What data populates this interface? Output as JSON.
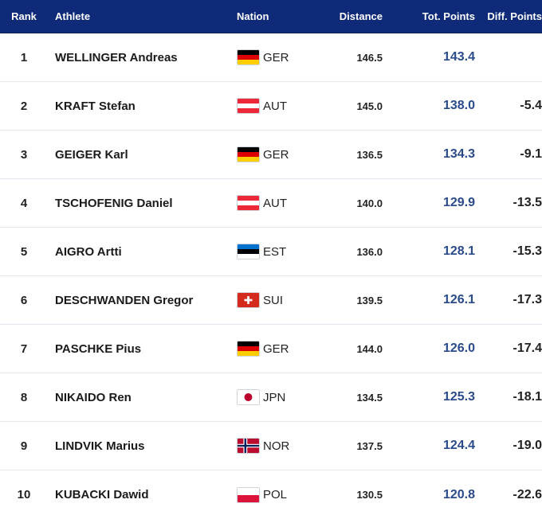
{
  "columns": {
    "rank": "Rank",
    "athlete": "Athlete",
    "nation": "Nation",
    "distance": "Distance",
    "total": "Tot. Points",
    "diff": "Diff. Points"
  },
  "rows": [
    {
      "rank": "1",
      "athlete": "WELLINGER Andreas",
      "nation": "GER",
      "flag_icon": "germany-flag-icon",
      "distance": "146.5",
      "total": "143.4",
      "diff": ""
    },
    {
      "rank": "2",
      "athlete": "KRAFT Stefan",
      "nation": "AUT",
      "flag_icon": "austria-flag-icon",
      "distance": "145.0",
      "total": "138.0",
      "diff": "-5.4"
    },
    {
      "rank": "3",
      "athlete": "GEIGER Karl",
      "nation": "GER",
      "flag_icon": "germany-flag-icon",
      "distance": "136.5",
      "total": "134.3",
      "diff": "-9.1"
    },
    {
      "rank": "4",
      "athlete": "TSCHOFENIG Daniel",
      "nation": "AUT",
      "flag_icon": "austria-flag-icon",
      "distance": "140.0",
      "total": "129.9",
      "diff": "-13.5"
    },
    {
      "rank": "5",
      "athlete": "AIGRO Artti",
      "nation": "EST",
      "flag_icon": "estonia-flag-icon",
      "distance": "136.0",
      "total": "128.1",
      "diff": "-15.3"
    },
    {
      "rank": "6",
      "athlete": "DESCHWANDEN Gregor",
      "nation": "SUI",
      "flag_icon": "switzerland-flag-icon",
      "distance": "139.5",
      "total": "126.1",
      "diff": "-17.3"
    },
    {
      "rank": "7",
      "athlete": "PASCHKE Pius",
      "nation": "GER",
      "flag_icon": "germany-flag-icon",
      "distance": "144.0",
      "total": "126.0",
      "diff": "-17.4"
    },
    {
      "rank": "8",
      "athlete": "NIKAIDO Ren",
      "nation": "JPN",
      "flag_icon": "japan-flag-icon",
      "distance": "134.5",
      "total": "125.3",
      "diff": "-18.1"
    },
    {
      "rank": "9",
      "athlete": "LINDVIK Marius",
      "nation": "NOR",
      "flag_icon": "norway-flag-icon",
      "distance": "137.5",
      "total": "124.4",
      "diff": "-19.0"
    },
    {
      "rank": "10",
      "athlete": "KUBACKI Dawid",
      "nation": "POL",
      "flag_icon": "poland-flag-icon",
      "distance": "130.5",
      "total": "120.8",
      "diff": "-22.6"
    }
  ],
  "colors": {
    "header_bg": "#0e2a78",
    "total_points_text": "#2a4a8a"
  }
}
